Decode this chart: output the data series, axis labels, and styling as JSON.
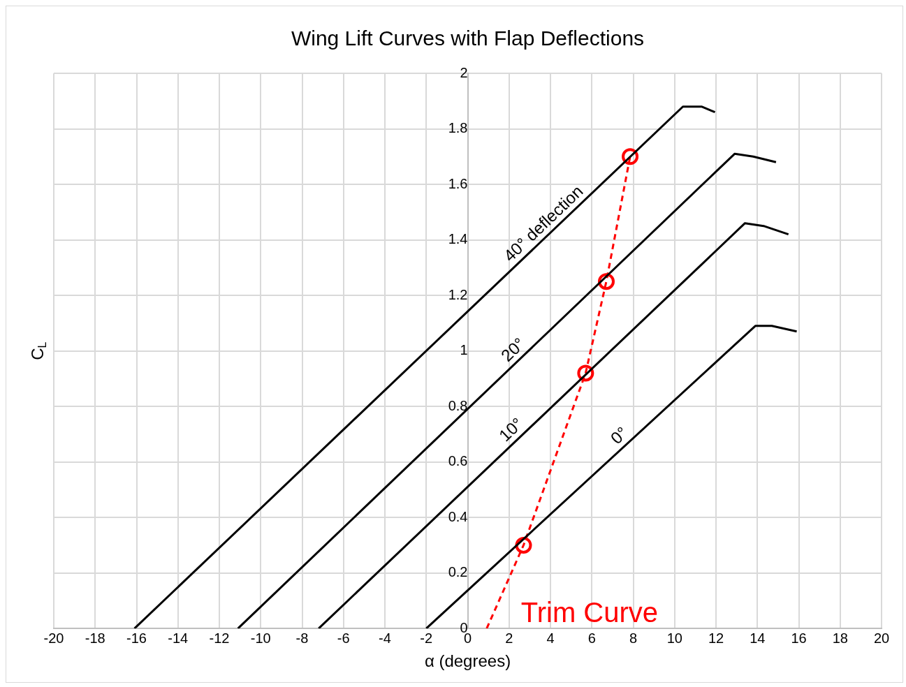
{
  "chart_data": {
    "type": "line",
    "title": "Wing Lift Curves with Flap Deflections",
    "xlabel": "α (degrees)",
    "ylabel": "C$_{L}$",
    "xlim": [
      -20,
      20
    ],
    "xticks": [
      -20,
      -18,
      -16,
      -14,
      -12,
      -10,
      -8,
      -6,
      -4,
      -2,
      0,
      2,
      4,
      6,
      8,
      10,
      12,
      14,
      16,
      18,
      20
    ],
    "ylim": [
      0,
      2
    ],
    "yticks": [
      0,
      0.2,
      0.4,
      0.6,
      0.8,
      1,
      1.2,
      1.4,
      1.6,
      1.8,
      2
    ],
    "grid": true,
    "series": [
      {
        "name": "40° deflection",
        "color": "#000000",
        "x": [
          -16.1,
          10.4,
          11.3,
          11.95
        ],
        "values": [
          0,
          1.88,
          1.88,
          1.86
        ]
      },
      {
        "name": "20°",
        "color": "#000000",
        "x": [
          -11.1,
          12.9,
          13.8,
          14.9
        ],
        "values": [
          0,
          1.71,
          1.7,
          1.68
        ]
      },
      {
        "name": "10°",
        "color": "#000000",
        "x": [
          -7.2,
          13.4,
          14.3,
          15.5
        ],
        "values": [
          0,
          1.46,
          1.45,
          1.42
        ]
      },
      {
        "name": "0°",
        "color": "#000000",
        "x": [
          -2,
          13.9,
          14.7,
          15.9
        ],
        "values": [
          0,
          1.09,
          1.09,
          1.07
        ]
      },
      {
        "name": "Trim Curve",
        "color": "#ff0000",
        "line_style": "dashed",
        "marker": "none",
        "x": [
          0.92,
          2.7,
          5.7,
          6.7,
          7.85
        ],
        "values": [
          0,
          0.3,
          0.92,
          1.25,
          1.7
        ]
      },
      {
        "type": "scatter",
        "color": "#ff0000",
        "marker": "circle",
        "x": [
          2.7,
          5.7,
          6.7,
          7.85
        ],
        "values": [
          0.3,
          0.92,
          1.25,
          1.7
        ]
      }
    ]
  }
}
